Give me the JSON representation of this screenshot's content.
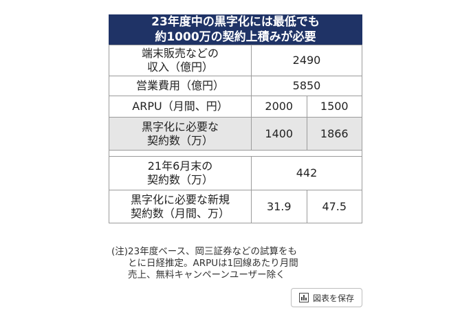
{
  "title": {
    "line1": "23年度中の黒字化には最低でも",
    "line2": "約1000万の契約上積みが必要"
  },
  "table": {
    "revenue": {
      "label_line1": "端末販売などの",
      "label_line2": "収入（億円）",
      "value": "2490"
    },
    "opex": {
      "label": "営業費用（億円）",
      "value": "5850"
    },
    "arpu": {
      "label": "ARPU（月間、円）",
      "v1": "2000",
      "v2": "1500"
    },
    "needed_contracts": {
      "label_line1": "黒字化に必要な",
      "label_line2": "契約数（万）",
      "v1": "1400",
      "v2": "1866"
    },
    "current_contracts": {
      "label_line1": "21年6月末の",
      "label_line2": "契約数（万）",
      "value": "442"
    },
    "new_contracts": {
      "label_line1": "黒字化に必要な新規",
      "label_line2": "契約数（月間、万）",
      "v1": "31.9",
      "v2": "47.5"
    }
  },
  "note": {
    "head": "(注)",
    "line1": "23年度ベース、岡三証券などの試算をも",
    "line2": "とに日経推定。ARPUは1回線あたり月間",
    "line3": "売上、無料キャンペーンユーザー除く"
  },
  "save_button": {
    "label": "図表を保存",
    "icon": "chart-icon"
  },
  "colors": {
    "title_bg": "#1f3366",
    "shade_bg": "#e6e6e6"
  }
}
